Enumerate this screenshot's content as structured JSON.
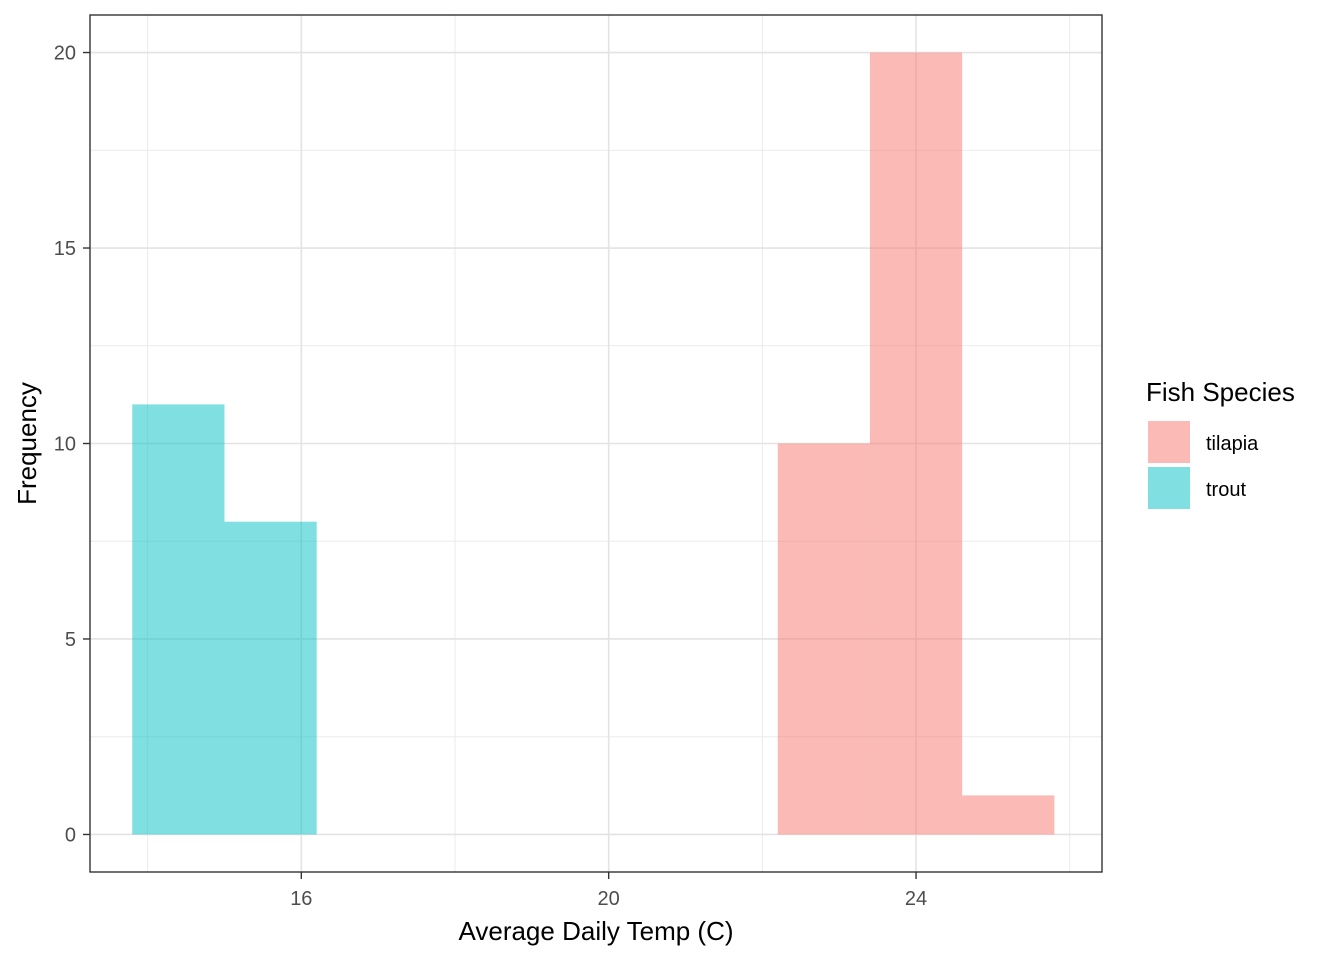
{
  "chart_data": {
    "type": "bar",
    "xlabel": "Average Daily Temp (C)",
    "ylabel": "Frequency",
    "xlim": [
      13.25,
      26.42
    ],
    "ylim": [
      -0.96,
      20.96
    ],
    "x_ticks": [
      16,
      20,
      24
    ],
    "y_ticks": [
      0,
      5,
      10,
      15,
      20
    ],
    "x_minor_ticks": [
      14,
      18,
      22,
      26
    ],
    "y_minor_ticks": [
      2.5,
      7.5,
      12.5,
      17.5
    ],
    "grid": true,
    "legend": {
      "title": "Fish Species",
      "position": "right"
    },
    "series": [
      {
        "name": "tilapia",
        "color": "#F8766D",
        "bins": [
          {
            "x_start": 22.2,
            "x_end": 23.4,
            "count": 10
          },
          {
            "x_start": 23.4,
            "x_end": 24.6,
            "count": 20
          },
          {
            "x_start": 24.6,
            "x_end": 25.8,
            "count": 1
          }
        ]
      },
      {
        "name": "trout",
        "color": "#00BFC4",
        "bins": [
          {
            "x_start": 13.8,
            "x_end": 15.0,
            "count": 11
          },
          {
            "x_start": 15.0,
            "x_end": 16.2,
            "count": 8
          }
        ]
      }
    ]
  }
}
